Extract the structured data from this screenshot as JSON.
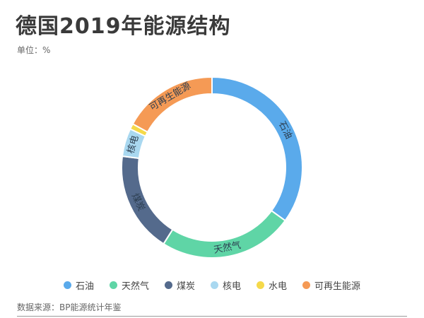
{
  "header": {
    "title": "德国2019年能源结构",
    "unit": "单位：%"
  },
  "footer": {
    "source": "数据来源：BP能源统计年鉴"
  },
  "chart_data": {
    "type": "pie",
    "donut": true,
    "categories": [
      "石油",
      "天然气",
      "煤炭",
      "核电",
      "水电",
      "可再生能源"
    ],
    "values": [
      35,
      24,
      18,
      5,
      1,
      17
    ],
    "colors": [
      "#5aaaeb",
      "#5fd5a6",
      "#546a8c",
      "#a9d8f0",
      "#f5d94a",
      "#f59a55"
    ],
    "legend": "bottom"
  }
}
